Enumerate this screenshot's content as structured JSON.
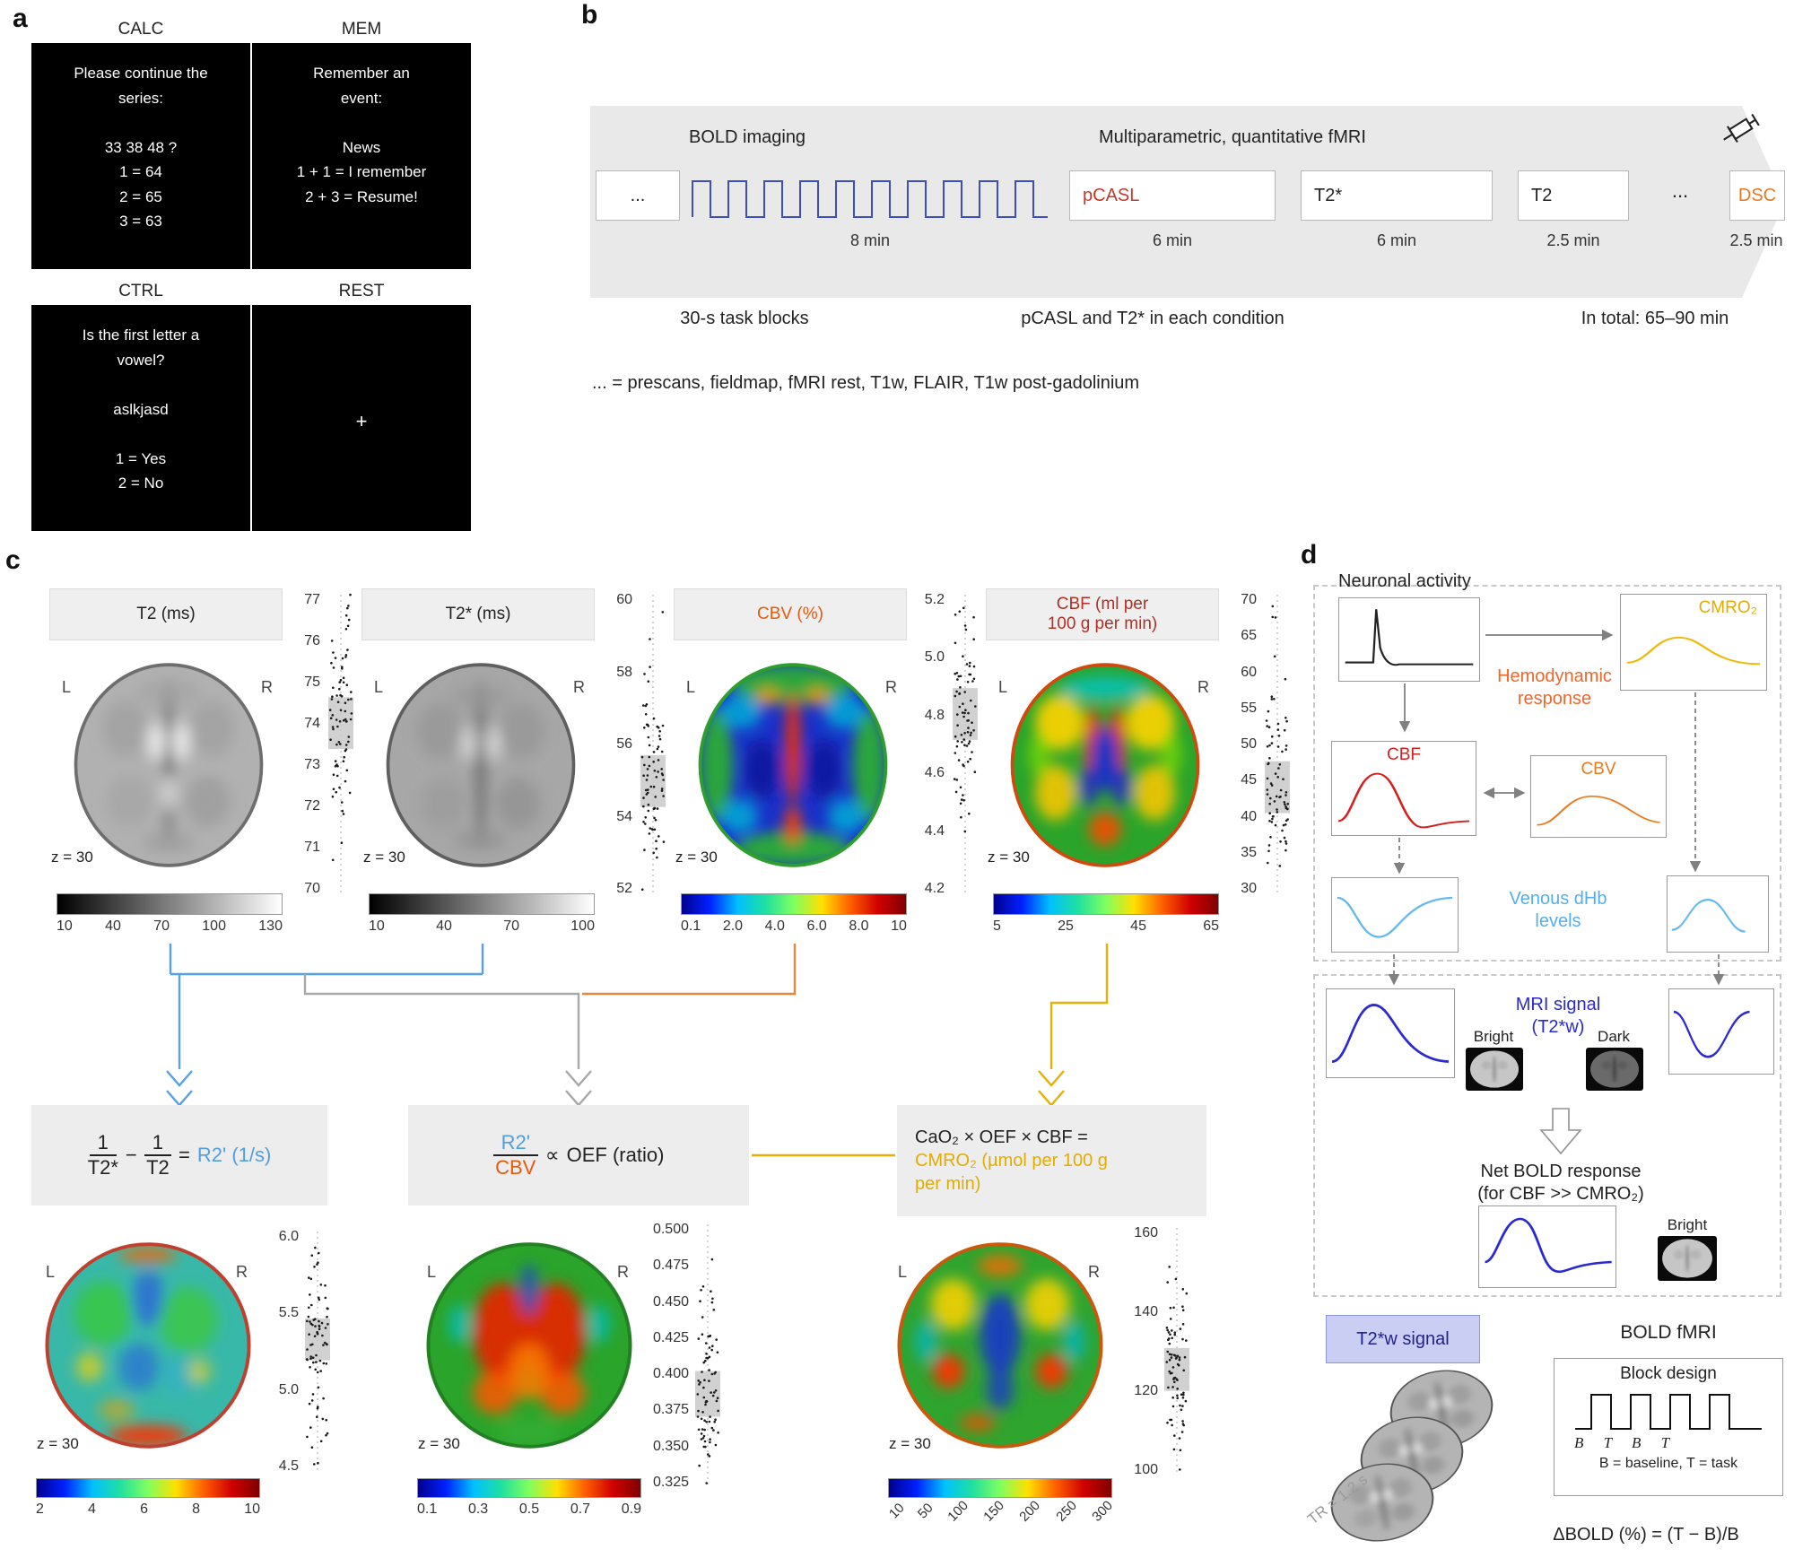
{
  "colors": {
    "light_blue": "#56a0e8",
    "orange": "#e8590c",
    "dark_red": "#b03024",
    "red": "#c0392b",
    "dsc_orange": "#e87722",
    "yellow": "#e2ac00",
    "mri_blue": "#2a2ad0",
    "venous_blue": "#56aef0",
    "hemo_orange": "#f1662a",
    "cbf_red": "#d62020",
    "cbv_orange": "#e87a1e",
    "banner_gray": "#e9e9e9"
  },
  "panel_a": {
    "label": "a",
    "cards": [
      {
        "title": "CALC",
        "body": "Please continue the\nseries:\n\n33 38 48 ?\n1 = 64\n2 = 65\n3 = 63"
      },
      {
        "title": "MEM",
        "body": "Remember an\nevent:\n\nNews\n1 + 1 = I remember\n2 + 3 = Resume!"
      },
      {
        "title": "CTRL",
        "body": "Is the first letter a\nvowel?\n\naslkjasd\n\n1 = Yes\n2 = No"
      },
      {
        "title": "REST",
        "body": "+"
      }
    ]
  },
  "panel_b": {
    "label": "b",
    "bold_imaging": "BOLD imaging",
    "multiparametric": "Multiparametric, quantitative fMRI",
    "dots_box": "...",
    "wave_time": "8 min",
    "pcasl": "pCASL",
    "pcasl_time": "6 min",
    "t2star": "T2*",
    "t2star_time": "6 min",
    "t2": "T2",
    "t2_time": "2.5 min",
    "dots2": "...",
    "dsc": "DSC",
    "dsc_time": "2.5 min",
    "caption_blocks": "30-s task blocks",
    "caption_condition": "pCASL and T2* in each condition",
    "caption_total": "In total: 65–90 min",
    "footnote": "... = prescans, fieldmap, fMRI rest, T1w, FLAIR, T1w post-gadolinium"
  },
  "panel_c": {
    "label": "c",
    "lr": [
      "L",
      "R"
    ],
    "maps": [
      {
        "title": "T2 (ms)",
        "z": "z = 30",
        "cbar": [
          "10",
          "40",
          "70",
          "100",
          "130"
        ],
        "ticks": [
          "77",
          "76",
          "75",
          "74",
          "73",
          "72",
          "71",
          "70"
        ]
      },
      {
        "title": "T2* (ms)",
        "z": "z = 30",
        "cbar": [
          "10",
          "40",
          "70",
          "100"
        ],
        "ticks": [
          "60",
          "58",
          "56",
          "54",
          "52"
        ]
      },
      {
        "title": "CBV (%)",
        "z": "z = 30",
        "cbar": [
          "0.1",
          "2.0",
          "4.0",
          "6.0",
          "8.0",
          "10"
        ],
        "ticks": [
          "5.2",
          "5.0",
          "4.8",
          "4.6",
          "4.4",
          "4.2"
        ]
      },
      {
        "title": "CBF (ml per\n100 g per min)",
        "z": "z = 30",
        "cbar": [
          "5",
          "25",
          "45",
          "65"
        ],
        "ticks": [
          "70",
          "65",
          "60",
          "55",
          "50",
          "45",
          "40",
          "35",
          "30"
        ]
      }
    ],
    "eq1": {
      "num1": "1",
      "den1": "T2*",
      "minus": "−",
      "num2": "1",
      "den2": "T2",
      "equals": "=",
      "result": "R2' (1/s)"
    },
    "eq2": {
      "num": "R2'",
      "den": "CBV",
      "prop": "∝",
      "rhs": "OEF (ratio)"
    },
    "eq3": {
      "line1": "CaO₂ × OEF × CBF =",
      "line2": "CMRO₂ (µmol per 100 g\nper min)"
    },
    "derived": [
      {
        "z": "z = 30",
        "cbar": [
          "2",
          "4",
          "6",
          "8",
          "10"
        ],
        "ticks": [
          "6.0",
          "5.5",
          "5.0",
          "4.5"
        ]
      },
      {
        "z": "z = 30",
        "cbar": [
          "0.1",
          "0.3",
          "0.5",
          "0.7",
          "0.9"
        ],
        "ticks": [
          "0.500",
          "0.475",
          "0.450",
          "0.425",
          "0.400",
          "0.375",
          "0.350",
          "0.325"
        ]
      },
      {
        "z": "z = 30",
        "cbar": [
          "10",
          "50",
          "100",
          "150",
          "200",
          "250",
          "300"
        ],
        "ticks": [
          "160",
          "140",
          "120",
          "100"
        ]
      }
    ]
  },
  "panel_d": {
    "label": "d",
    "neuronal": "Neuronal activity",
    "cmro2": "CMRO₂",
    "hemodynamic": "Hemodynamic\nresponse",
    "cbf": "CBF",
    "cbv": "CBV",
    "venous": "Venous dHb\nlevels",
    "mri_signal": "MRI signal\n(T2*w)",
    "bright1": "Bright",
    "dark": "Dark",
    "net_bold": "Net BOLD response\n(for CBF >> CMRO₂)",
    "bright2": "Bright",
    "t2w": "T2*w signal",
    "bold_fmri": "BOLD fMRI",
    "tr": "TR = 1.2 s",
    "block_design": "Block design",
    "btbt": "B T B T",
    "legend": "B = baseline, T = task",
    "delta": "ΔBOLD (%) = (T − B)/B"
  }
}
